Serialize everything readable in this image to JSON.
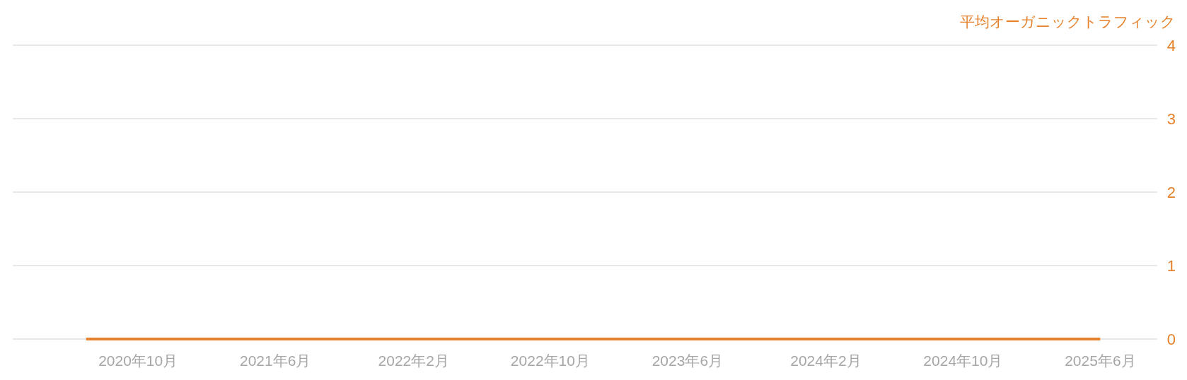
{
  "chart_data": {
    "type": "line",
    "ylabel": "平均オーガニックトラフィック",
    "x": [
      "2020-07",
      "2020-08",
      "2020-09",
      "2020-10",
      "2020-11",
      "2020-12",
      "2021-01",
      "2021-02",
      "2021-03",
      "2021-04",
      "2021-05",
      "2021-06",
      "2021-07",
      "2021-08",
      "2021-09",
      "2021-10",
      "2021-11",
      "2021-12",
      "2022-01",
      "2022-02",
      "2022-03",
      "2022-04",
      "2022-05",
      "2022-06",
      "2022-07",
      "2022-08",
      "2022-09",
      "2022-10",
      "2022-11",
      "2022-12",
      "2023-01",
      "2023-02",
      "2023-03",
      "2023-04",
      "2023-05",
      "2023-06",
      "2023-07",
      "2023-08",
      "2023-09",
      "2023-10",
      "2023-11",
      "2023-12",
      "2024-01",
      "2024-02",
      "2024-03",
      "2024-04",
      "2024-05",
      "2024-06",
      "2024-07",
      "2024-08",
      "2024-09",
      "2024-10",
      "2024-11",
      "2024-12",
      "2025-01",
      "2025-02",
      "2025-03",
      "2025-04",
      "2025-05",
      "2025-06"
    ],
    "series": [
      {
        "color": "#e5812b",
        "values": [
          0,
          0,
          0,
          0,
          0,
          0,
          0,
          0,
          0,
          0,
          0,
          0,
          0,
          0,
          0,
          0,
          0,
          0,
          0,
          0,
          0,
          0,
          0,
          0,
          0,
          0,
          0,
          0,
          0,
          0,
          0,
          0,
          0,
          0,
          0,
          0,
          0,
          0,
          0,
          0,
          0,
          0,
          0,
          0,
          0,
          0,
          0,
          0,
          0,
          0,
          0,
          0,
          0,
          0,
          0,
          0,
          0,
          0,
          0,
          0
        ]
      }
    ],
    "xlim": [
      "2020-02-22",
      "2025-09-10"
    ],
    "xticks": [
      {
        "value": "2020-10",
        "label": "2020年10月"
      },
      {
        "value": "2021-06",
        "label": "2021年6月"
      },
      {
        "value": "2022-02",
        "label": "2022年2月"
      },
      {
        "value": "2022-10",
        "label": "2022年10月"
      },
      {
        "value": "2023-06",
        "label": "2023年6月"
      },
      {
        "value": "2024-02",
        "label": "2024年2月"
      },
      {
        "value": "2024-10",
        "label": "2024年10月"
      },
      {
        "value": "2025-06",
        "label": "2025年6月"
      }
    ],
    "ylim": [
      0,
      4
    ],
    "yticks": [
      0,
      1,
      2,
      3,
      4
    ],
    "grid": "y"
  }
}
